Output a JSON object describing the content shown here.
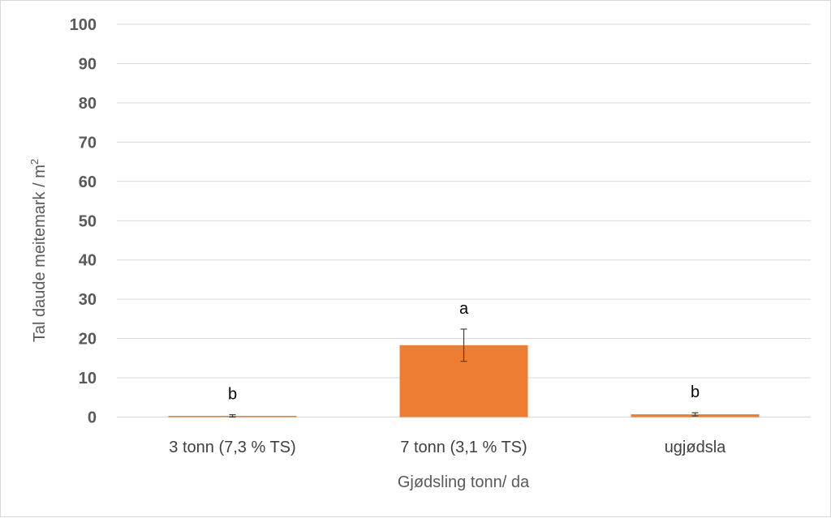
{
  "chart_data": {
    "type": "bar",
    "categories": [
      "3 tonn (7,3 % TS)",
      "7 tonn (3,1 % TS)",
      "ugjødsla"
    ],
    "values": [
      0.3,
      18.3,
      0.7
    ],
    "error": [
      0.3,
      4.1,
      0.4
    ],
    "significance_labels": [
      "b",
      "a",
      "b"
    ],
    "xlabel": "Gjødsling tonn/ da",
    "ylabel": "Tal daude meitemark / m",
    "ylabel_superscript": "2",
    "ylim": [
      0,
      100
    ],
    "yticks": [
      "0",
      "10",
      "20",
      "30",
      "40",
      "50",
      "60",
      "70",
      "80",
      "90",
      "100"
    ],
    "grid": true,
    "legend": "none",
    "bar_color": "#ED7D31",
    "grid_color": "#D9D9D9",
    "error_bar_color": "#404040"
  }
}
